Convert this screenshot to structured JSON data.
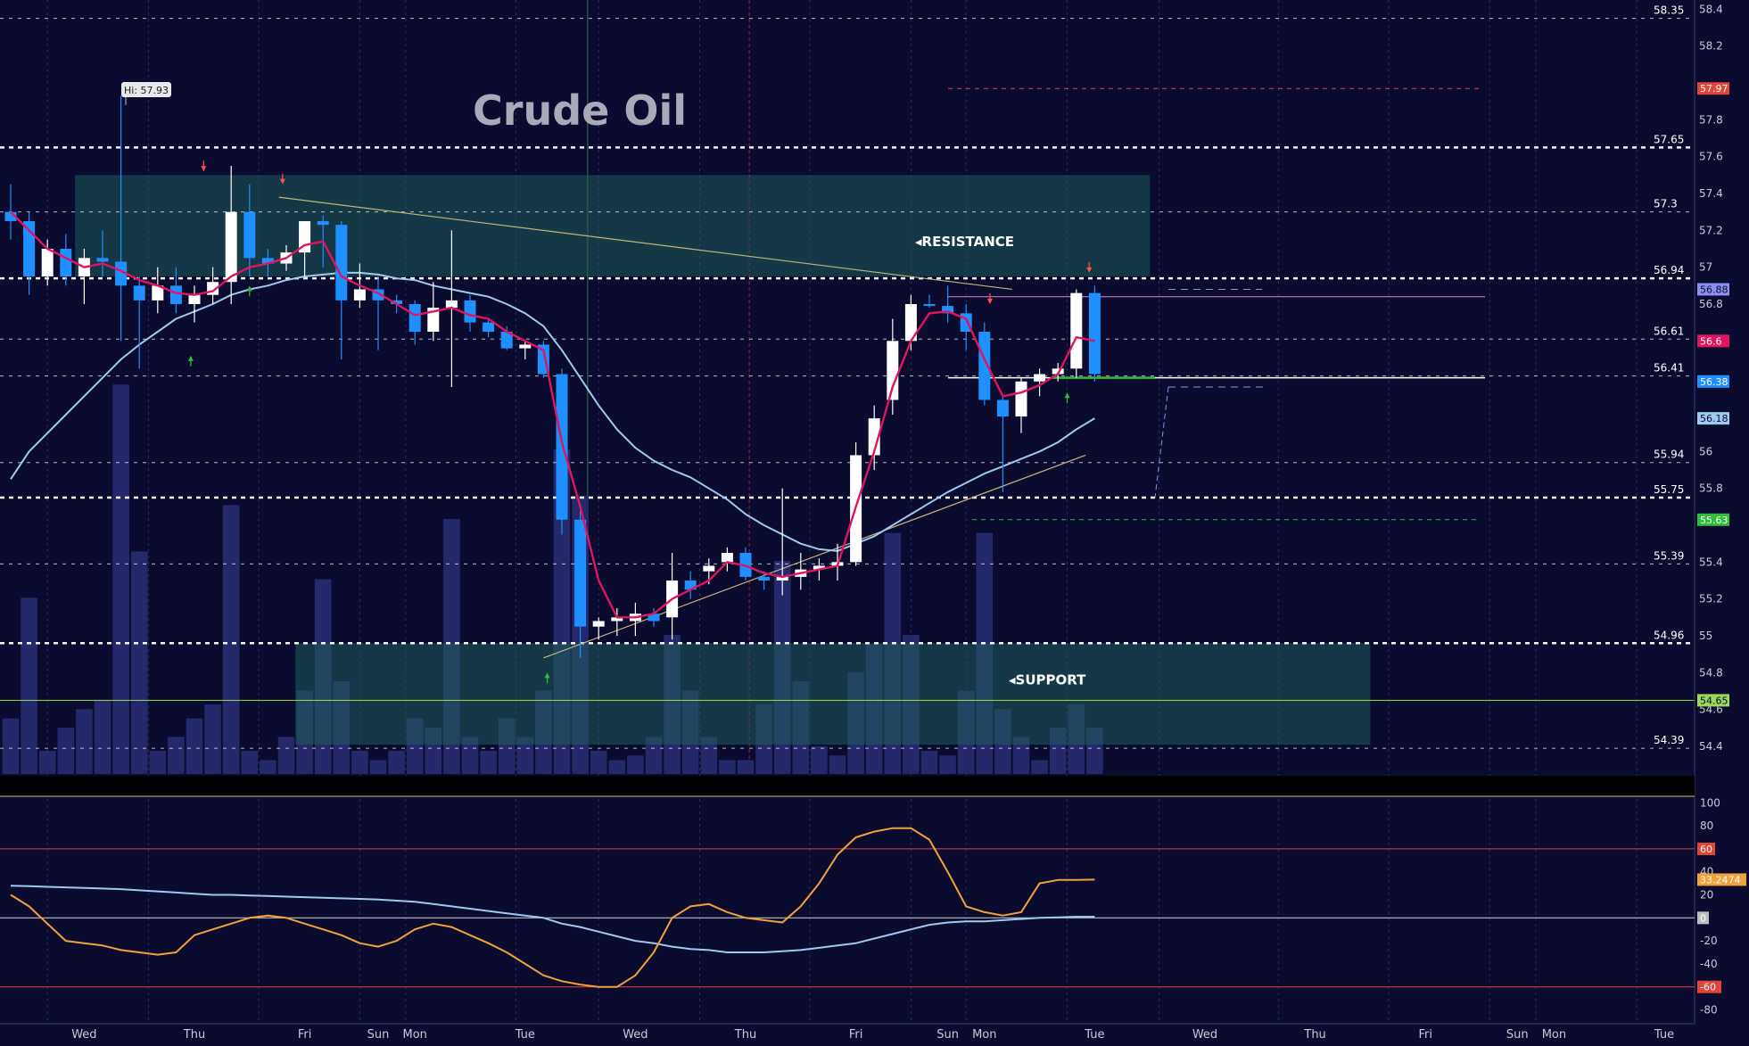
{
  "chart_data": {
    "type": "candlestick",
    "title": "Crude Oil",
    "high_label": "Hi: 57.93",
    "colors": {
      "background": "#0a0b2e",
      "up_candle": "#ffffff",
      "down_candle": "#1e90ff",
      "ema_fast": "#e0155f",
      "ema_slow": "#9ec9f2",
      "zone_fill": "#1e5e5a",
      "trendline": "#c7b27a",
      "oscillator": "#f2a23a",
      "volume": "#25286a"
    },
    "price_axis": {
      "ylim": [
        54.25,
        58.45
      ],
      "ticks": [
        "58.4",
        "58.2",
        "57.8",
        "57.6",
        "57.4",
        "57.2",
        "57",
        "56.8",
        "56",
        "55.8",
        "55.4",
        "55.2",
        "55",
        "54.8",
        "54.6",
        "54.4"
      ]
    },
    "levels": [
      {
        "value": 58.35,
        "label": "58.35",
        "style": "dashed-thin"
      },
      {
        "value": 57.65,
        "label": "57.65",
        "style": "dashed-bold"
      },
      {
        "value": 57.3,
        "label": "57.3",
        "style": "dashed-thin"
      },
      {
        "value": 56.94,
        "label": "56.94",
        "style": "dashed-bold"
      },
      {
        "value": 56.61,
        "label": "56.61",
        "style": "dashed-thin"
      },
      {
        "value": 56.41,
        "label": "56.41",
        "style": "dashed-thin"
      },
      {
        "value": 55.94,
        "label": "55.94",
        "style": "dashed-thin"
      },
      {
        "value": 55.75,
        "label": "55.75",
        "style": "dashed-bold"
      },
      {
        "value": 55.39,
        "label": "55.39",
        "style": "dashed-thin"
      },
      {
        "value": 54.96,
        "label": "54.96",
        "style": "dashed-bold"
      },
      {
        "value": 54.39,
        "label": "54.39",
        "style": "dashed-thin"
      }
    ],
    "price_tags": [
      {
        "value": 57.97,
        "label": "57.97",
        "bg": "#e0453a",
        "fg": "#ffffff"
      },
      {
        "value": 56.88,
        "label": "56.88",
        "bg": "#8a8ff0",
        "fg": "#0a0b2e"
      },
      {
        "value": 56.6,
        "label": "56.6",
        "bg": "#e0155f",
        "fg": "#ffffff"
      },
      {
        "value": 56.38,
        "label": "56.38",
        "bg": "#1e90ff",
        "fg": "#ffffff"
      },
      {
        "value": 56.18,
        "label": "56.18",
        "bg": "#9ec9f2",
        "fg": "#0a0b2e"
      },
      {
        "value": 55.63,
        "label": "55.63",
        "bg": "#2fbf3a",
        "fg": "#ffffff"
      },
      {
        "value": 54.65,
        "label": "54.65",
        "bg": "#9bd85a",
        "fg": "#0a0b2e"
      }
    ],
    "zones": [
      {
        "label": "RESISTANCE",
        "from": 56.95,
        "to": 57.5,
        "start_index": 4,
        "end_index": 62
      },
      {
        "label": "SUPPORT",
        "from": 54.41,
        "to": 54.96,
        "start_index": 16,
        "end_index": 74
      }
    ],
    "candles": [
      {
        "o": 57.3,
        "h": 57.45,
        "l": 57.15,
        "c": 57.25
      },
      {
        "o": 57.25,
        "h": 57.3,
        "l": 56.85,
        "c": 56.95
      },
      {
        "o": 56.95,
        "h": 57.15,
        "l": 56.9,
        "c": 57.1
      },
      {
        "o": 57.1,
        "h": 57.18,
        "l": 56.9,
        "c": 56.95
      },
      {
        "o": 56.95,
        "h": 57.1,
        "l": 56.8,
        "c": 57.05
      },
      {
        "o": 57.05,
        "h": 57.2,
        "l": 56.95,
        "c": 57.03
      },
      {
        "o": 57.03,
        "h": 57.93,
        "l": 56.6,
        "c": 56.9
      },
      {
        "o": 56.9,
        "h": 56.95,
        "l": 56.45,
        "c": 56.82
      },
      {
        "o": 56.82,
        "h": 57.0,
        "l": 56.75,
        "c": 56.9
      },
      {
        "o": 56.9,
        "h": 57.0,
        "l": 56.75,
        "c": 56.8
      },
      {
        "o": 56.8,
        "h": 56.9,
        "l": 56.7,
        "c": 56.85
      },
      {
        "o": 56.85,
        "h": 57.0,
        "l": 56.8,
        "c": 56.92
      },
      {
        "o": 56.92,
        "h": 57.55,
        "l": 56.8,
        "c": 57.3
      },
      {
        "o": 57.3,
        "h": 57.45,
        "l": 56.95,
        "c": 57.05
      },
      {
        "o": 57.05,
        "h": 57.1,
        "l": 56.95,
        "c": 57.02
      },
      {
        "o": 57.02,
        "h": 57.12,
        "l": 56.98,
        "c": 57.08
      },
      {
        "o": 57.08,
        "h": 57.25,
        "l": 56.95,
        "c": 57.25
      },
      {
        "o": 57.25,
        "h": 57.28,
        "l": 57.0,
        "c": 57.23
      },
      {
        "o": 57.23,
        "h": 57.25,
        "l": 56.5,
        "c": 56.82
      },
      {
        "o": 56.82,
        "h": 57.02,
        "l": 56.78,
        "c": 56.88
      },
      {
        "o": 56.88,
        "h": 56.95,
        "l": 56.55,
        "c": 56.82
      },
      {
        "o": 56.82,
        "h": 56.85,
        "l": 56.75,
        "c": 56.8
      },
      {
        "o": 56.8,
        "h": 56.82,
        "l": 56.58,
        "c": 56.65
      },
      {
        "o": 56.65,
        "h": 56.92,
        "l": 56.6,
        "c": 56.78
      },
      {
        "o": 56.78,
        "h": 57.2,
        "l": 56.35,
        "c": 56.82
      },
      {
        "o": 56.82,
        "h": 56.85,
        "l": 56.65,
        "c": 56.7
      },
      {
        "o": 56.7,
        "h": 56.72,
        "l": 56.62,
        "c": 56.65
      },
      {
        "o": 56.65,
        "h": 56.68,
        "l": 56.55,
        "c": 56.56
      },
      {
        "o": 56.56,
        "h": 56.6,
        "l": 56.5,
        "c": 56.58
      },
      {
        "o": 56.58,
        "h": 56.6,
        "l": 56.4,
        "c": 56.42
      },
      {
        "o": 56.42,
        "h": 56.45,
        "l": 55.55,
        "c": 55.63
      },
      {
        "o": 55.63,
        "h": 55.68,
        "l": 54.88,
        "c": 55.05
      },
      {
        "o": 55.05,
        "h": 55.1,
        "l": 54.98,
        "c": 55.08
      },
      {
        "o": 55.08,
        "h": 55.15,
        "l": 55.0,
        "c": 55.1
      },
      {
        "o": 55.08,
        "h": 55.18,
        "l": 55.0,
        "c": 55.12
      },
      {
        "o": 55.12,
        "h": 55.15,
        "l": 55.05,
        "c": 55.08
      },
      {
        "o": 55.1,
        "h": 55.45,
        "l": 54.98,
        "c": 55.3
      },
      {
        "o": 55.3,
        "h": 55.35,
        "l": 55.2,
        "c": 55.25
      },
      {
        "o": 55.35,
        "h": 55.42,
        "l": 55.28,
        "c": 55.38
      },
      {
        "o": 55.4,
        "h": 55.48,
        "l": 55.35,
        "c": 55.45
      },
      {
        "o": 55.45,
        "h": 55.48,
        "l": 55.3,
        "c": 55.32
      },
      {
        "o": 55.32,
        "h": 55.35,
        "l": 55.25,
        "c": 55.3
      },
      {
        "o": 55.3,
        "h": 55.8,
        "l": 55.22,
        "c": 55.32
      },
      {
        "o": 55.32,
        "h": 55.45,
        "l": 55.25,
        "c": 55.36
      },
      {
        "o": 55.36,
        "h": 55.42,
        "l": 55.3,
        "c": 55.38
      },
      {
        "o": 55.38,
        "h": 55.5,
        "l": 55.3,
        "c": 55.4
      },
      {
        "o": 55.4,
        "h": 56.05,
        "l": 55.38,
        "c": 55.98
      },
      {
        "o": 55.98,
        "h": 56.25,
        "l": 55.9,
        "c": 56.18
      },
      {
        "o": 56.28,
        "h": 56.72,
        "l": 56.2,
        "c": 56.6
      },
      {
        "o": 56.6,
        "h": 56.85,
        "l": 56.55,
        "c": 56.8
      },
      {
        "o": 56.8,
        "h": 56.85,
        "l": 56.78,
        "c": 56.79
      },
      {
        "o": 56.79,
        "h": 56.9,
        "l": 56.7,
        "c": 56.75
      },
      {
        "o": 56.75,
        "h": 56.8,
        "l": 56.55,
        "c": 56.65
      },
      {
        "o": 56.65,
        "h": 56.7,
        "l": 56.25,
        "c": 56.28
      },
      {
        "o": 56.28,
        "h": 56.3,
        "l": 55.78,
        "c": 56.19
      },
      {
        "o": 56.19,
        "h": 56.4,
        "l": 56.1,
        "c": 56.38
      },
      {
        "o": 56.38,
        "h": 56.45,
        "l": 56.3,
        "c": 56.42
      },
      {
        "o": 56.42,
        "h": 56.48,
        "l": 56.38,
        "c": 56.45
      },
      {
        "o": 56.45,
        "h": 56.88,
        "l": 56.4,
        "c": 56.86
      },
      {
        "o": 56.86,
        "h": 56.9,
        "l": 56.38,
        "c": 56.42
      }
    ],
    "ema_fast": [
      57.3,
      57.2,
      57.1,
      57.05,
      57.0,
      57.02,
      56.98,
      56.93,
      56.9,
      56.86,
      56.85,
      56.87,
      56.95,
      57.0,
      57.02,
      57.05,
      57.12,
      57.14,
      56.95,
      56.9,
      56.86,
      56.8,
      56.74,
      56.76,
      56.78,
      56.74,
      56.72,
      56.65,
      56.6,
      56.55,
      56.05,
      55.7,
      55.3,
      55.1,
      55.1,
      55.12,
      55.2,
      55.25,
      55.3,
      55.4,
      55.38,
      55.34,
      55.32,
      55.34,
      55.36,
      55.38,
      55.7,
      56.0,
      56.35,
      56.6,
      56.75,
      56.76,
      56.72,
      56.5,
      56.3,
      56.32,
      56.36,
      56.42,
      56.62,
      56.6
    ],
    "ema_slow": [
      55.85,
      56.0,
      56.1,
      56.2,
      56.3,
      56.4,
      56.5,
      56.58,
      56.65,
      56.72,
      56.76,
      56.8,
      56.85,
      56.88,
      56.9,
      56.93,
      56.95,
      56.96,
      56.97,
      56.97,
      56.96,
      56.94,
      56.93,
      56.9,
      56.88,
      56.86,
      56.84,
      56.8,
      56.75,
      56.68,
      56.55,
      56.4,
      56.25,
      56.12,
      56.02,
      55.95,
      55.9,
      55.86,
      55.8,
      55.74,
      55.66,
      55.6,
      55.55,
      55.5,
      55.47,
      55.46,
      55.5,
      55.54,
      55.6,
      55.66,
      55.72,
      55.78,
      55.83,
      55.88,
      55.92,
      55.96,
      56.0,
      56.05,
      56.12,
      56.18
    ],
    "volume": [
      0.12,
      0.38,
      0.05,
      0.1,
      0.14,
      0.16,
      0.84,
      0.48,
      0.05,
      0.08,
      0.12,
      0.15,
      0.58,
      0.05,
      0.03,
      0.08,
      0.18,
      0.42,
      0.2,
      0.05,
      0.03,
      0.05,
      0.12,
      0.1,
      0.55,
      0.08,
      0.05,
      0.12,
      0.08,
      0.18,
      0.7,
      0.6,
      0.05,
      0.03,
      0.04,
      0.08,
      0.3,
      0.18,
      0.08,
      0.03,
      0.03,
      0.15,
      0.46,
      0.2,
      0.06,
      0.04,
      0.22,
      0.28,
      0.52,
      0.3,
      0.05,
      0.04,
      0.18,
      0.52,
      0.14,
      0.08,
      0.03,
      0.1,
      0.15,
      0.1
    ],
    "volume_bins": 60,
    "day_labels": [
      {
        "label": "Wed",
        "index": 4
      },
      {
        "label": "Thu",
        "index": 10
      },
      {
        "label": "Fri",
        "index": 16
      },
      {
        "label": "Sun",
        "index": 20
      },
      {
        "label": "Mon",
        "index": 22
      },
      {
        "label": "Tue",
        "index": 28
      },
      {
        "label": "Wed",
        "index": 34
      },
      {
        "label": "Thu",
        "index": 40
      },
      {
        "label": "Fri",
        "index": 46
      },
      {
        "label": "Sun",
        "index": 51
      },
      {
        "label": "Mon",
        "index": 53
      },
      {
        "label": "Tue",
        "index": 59
      },
      {
        "label": "Wed",
        "index": 65
      },
      {
        "label": "Thu",
        "index": 71
      },
      {
        "label": "Fri",
        "index": 77
      },
      {
        "label": "Sun",
        "index": 82
      },
      {
        "label": "Mon",
        "index": 84
      },
      {
        "label": "Tue",
        "index": 90
      }
    ],
    "oscillator": {
      "ylim": [
        -92,
        108
      ],
      "ticks": [
        "100",
        "80",
        "60",
        "40",
        "20",
        "0",
        "-20",
        "-40",
        "-60",
        "-80"
      ],
      "tag_values": [
        {
          "value": 60,
          "label": "60",
          "bg": "#e0453a"
        },
        {
          "value": 33.2474,
          "label": "33.2474",
          "bg": "#f2a23a"
        },
        {
          "value": 0,
          "label": "0",
          "bg": "#bdbdbd"
        },
        {
          "value": -60,
          "label": "-60",
          "bg": "#e0453a"
        }
      ],
      "osc_line": [
        20,
        10,
        -5,
        -20,
        -22,
        -24,
        -28,
        -30,
        -32,
        -30,
        -15,
        -10,
        -5,
        0,
        2,
        0,
        -5,
        -10,
        -15,
        -22,
        -25,
        -20,
        -10,
        -5,
        -8,
        -15,
        -22,
        -30,
        -40,
        -50,
        -55,
        -58,
        -60,
        -60,
        -50,
        -30,
        0,
        10,
        12,
        5,
        0,
        -2,
        -4,
        10,
        30,
        55,
        70,
        75,
        78,
        78,
        68,
        40,
        10,
        5,
        2,
        5,
        30,
        33,
        33,
        33.2474
      ],
      "signal_line": [
        28,
        27.5,
        27,
        26.5,
        26,
        25.5,
        25,
        24,
        23,
        22,
        21,
        20,
        20,
        19.5,
        19,
        18.5,
        18,
        17.5,
        17,
        16.5,
        16,
        15,
        14,
        12,
        10,
        8,
        6,
        4,
        2,
        0,
        -5,
        -8,
        -12,
        -16,
        -20,
        -22,
        -25,
        -27,
        -28,
        -30,
        -30,
        -30,
        -29,
        -28,
        -26,
        -24,
        -22,
        -18,
        -14,
        -10,
        -6,
        -4,
        -3,
        -3,
        -2,
        -1,
        0,
        0.5,
        1,
        1
      ]
    }
  }
}
